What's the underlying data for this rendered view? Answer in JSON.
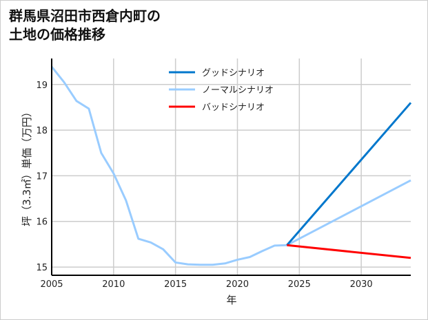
{
  "chart_data": {
    "type": "line",
    "title": [
      "群馬県沼田市西倉内町の",
      "土地の価格推移"
    ],
    "xlabel": "年",
    "ylabel": "坪（3.3㎡）単価（万円）",
    "xlim": [
      2005,
      2034
    ],
    "ylim": [
      14.82,
      19.57
    ],
    "xticks": [
      2005,
      2010,
      2015,
      2020,
      2025,
      2030
    ],
    "yticks": [
      15,
      16,
      17,
      18,
      19
    ],
    "grid": true,
    "legend_position": "top-center",
    "series": [
      {
        "name": "グッドシナリオ",
        "color": "#0077cc",
        "x": [
          2024,
          2034
        ],
        "values": [
          15.48,
          18.6
        ]
      },
      {
        "name": "ノーマルシナリオ",
        "color": "#99ccff",
        "x": [
          2005,
          2006,
          2007,
          2008,
          2009,
          2010,
          2011,
          2012,
          2013,
          2014,
          2015,
          2016,
          2017,
          2018,
          2019,
          2020,
          2021,
          2022,
          2023,
          2024,
          2034
        ],
        "values": [
          19.39,
          19.05,
          18.64,
          18.47,
          17.5,
          17.05,
          16.46,
          15.62,
          15.54,
          15.39,
          15.1,
          15.06,
          15.05,
          15.05,
          15.08,
          15.16,
          15.22,
          15.35,
          15.47,
          15.48,
          16.9
        ]
      },
      {
        "name": "バッドシナリオ",
        "color": "#ff0000",
        "x": [
          2024,
          2034
        ],
        "values": [
          15.48,
          15.2
        ]
      }
    ]
  }
}
